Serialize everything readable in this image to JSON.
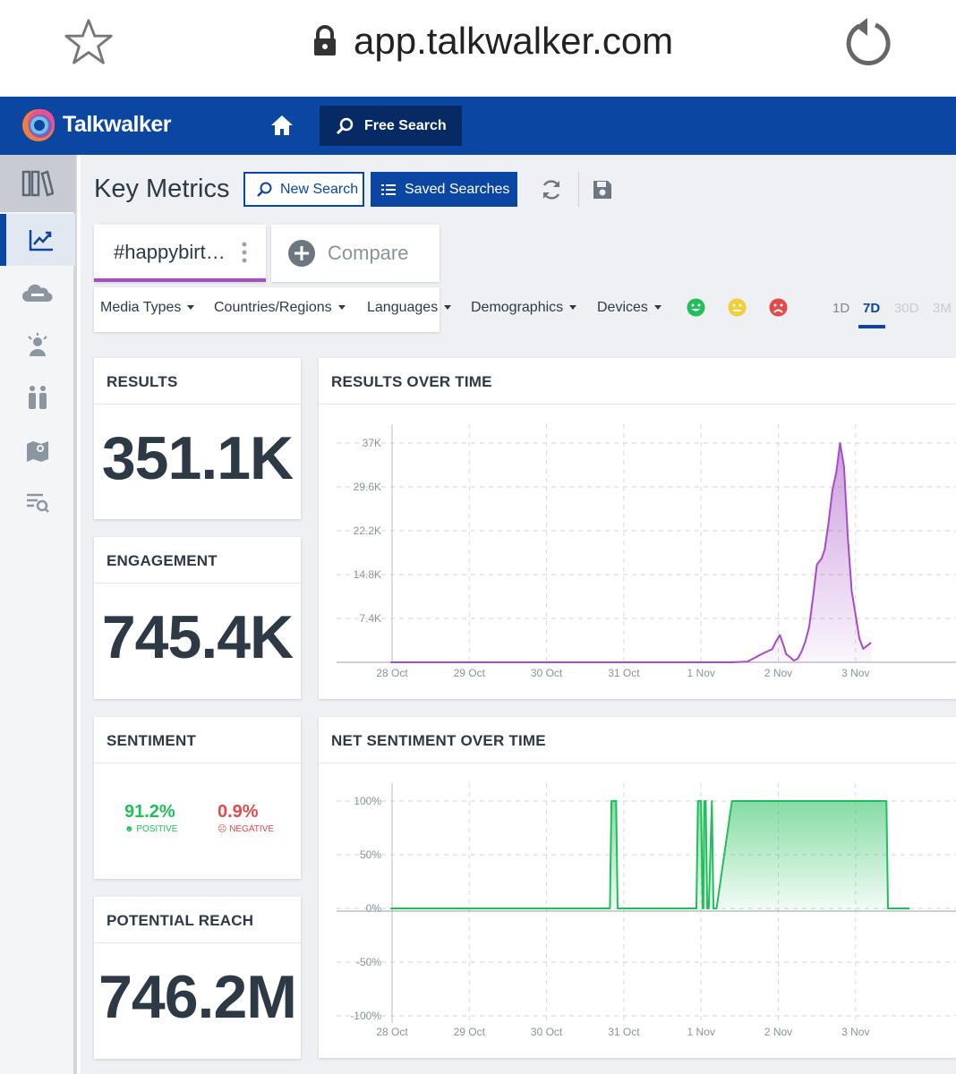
{
  "browser": {
    "url": "app.talkwalker.com"
  },
  "app": {
    "logo": "Talkwalker",
    "free_search": "Free Search"
  },
  "sidebar": {
    "items": [
      "library-icon",
      "metrics-icon",
      "themes-icon",
      "influencers-icon",
      "demographics-icon",
      "map-icon",
      "results-icon"
    ],
    "active": "metrics-icon"
  },
  "header": {
    "title": "Key Metrics",
    "new_search": "New Search",
    "saved_searches": "Saved Searches"
  },
  "query": {
    "label": "#happybirt…",
    "compare": "Compare"
  },
  "filters": {
    "media_types": "Media Types",
    "countries": "Countries/Regions",
    "languages": "Languages",
    "demographics": "Demographics",
    "devices": "Devices"
  },
  "ranges": {
    "r1d": "1D",
    "r7d": "7D",
    "r30d": "30D",
    "r3m": "3M",
    "active": "7D"
  },
  "colors": {
    "brand": "#0b46a2",
    "results_line": "#a54cc6",
    "sentiment_line": "#21bf5a",
    "positive": "#21bf5a",
    "neutral": "#f3cf3b",
    "negative": "#e24b4b"
  },
  "metrics": {
    "results": {
      "title": "RESULTS",
      "value": "351.1K"
    },
    "engagement": {
      "title": "ENGAGEMENT",
      "value": "745.4K"
    },
    "sentiment": {
      "title": "SENTIMENT",
      "positive_value": "91.2%",
      "positive_label": "POSITIVE",
      "negative_value": "0.9%",
      "negative_label": "NEGATIVE"
    },
    "reach": {
      "title": "POTENTIAL REACH",
      "value": "746.2M"
    }
  },
  "chart_data": [
    {
      "type": "area",
      "title": "RESULTS OVER TIME",
      "x_ticks": [
        "28 Oct",
        "29 Oct",
        "30 Oct",
        "31 Oct",
        "1 Nov",
        "2 Nov",
        "3 Nov"
      ],
      "y_ticks": [
        "7.4K",
        "14.8K",
        "22.2K",
        "29.6K",
        "37K"
      ],
      "ylim": [
        0,
        37000
      ],
      "x_range_days": [
        27.98,
        34.2
      ],
      "grid": true,
      "series": [
        {
          "x": [
            27.98,
            31.8,
            31.9,
            32.0,
            32.4,
            32.6,
            32.8,
            32.92,
            32.97,
            33.02,
            33.07,
            33.1,
            33.15,
            33.2,
            33.25,
            33.3,
            33.35,
            33.4,
            33.45,
            33.5,
            33.56,
            33.6,
            33.65,
            33.7,
            33.75,
            33.8,
            33.85,
            33.9,
            33.95,
            34.0,
            34.05,
            34.1,
            34.2
          ],
          "y": [
            0,
            0,
            0,
            0,
            0,
            100,
            1500,
            2200,
            3500,
            4600,
            2800,
            1400,
            900,
            300,
            600,
            1800,
            3500,
            6000,
            11000,
            16500,
            17500,
            19000,
            23500,
            29000,
            32000,
            37000,
            33000,
            21000,
            12000,
            8000,
            4000,
            2300,
            3300
          ]
        }
      ]
    },
    {
      "type": "area",
      "title": "NET SENTIMENT OVER TIME",
      "x_ticks": [
        "28 Oct",
        "29 Oct",
        "30 Oct",
        "31 Oct",
        "1 Nov",
        "2 Nov",
        "3 Nov"
      ],
      "y_ticks": [
        "100%",
        "50%",
        "0%",
        "-50%",
        "-100%"
      ],
      "ylim": [
        -100,
        100
      ],
      "grid": true,
      "series": [
        {
          "x": [
            27.98,
            30.82,
            30.84,
            30.88,
            30.9,
            30.92,
            31.94,
            31.96,
            32.0,
            32.02,
            32.03,
            32.04,
            32.06,
            32.08,
            32.1,
            32.14,
            32.16,
            32.2,
            32.4,
            32.42,
            32.6,
            33.5,
            34.0,
            34.4,
            34.42,
            34.7
          ],
          "y": [
            0,
            0,
            100,
            100,
            100,
            0,
            0,
            100,
            100,
            0,
            0,
            100,
            100,
            0,
            0,
            100,
            0,
            0,
            100,
            100,
            100,
            100,
            100,
            100,
            0,
            0
          ]
        }
      ]
    }
  ]
}
